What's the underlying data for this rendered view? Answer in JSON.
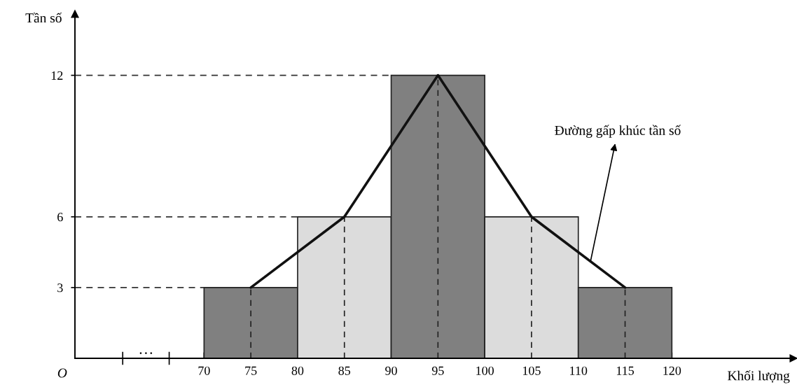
{
  "chart_data": {
    "type": "histogram",
    "xlabel": "Khối lượng",
    "ylabel": "Tần số",
    "bins": [
      70,
      80,
      90,
      100,
      110,
      120
    ],
    "series": [
      {
        "values": [
          3,
          6,
          12,
          6,
          3
        ],
        "colors": [
          "#808080",
          "#dcdcdc",
          "#808080",
          "#dcdcdc",
          "#808080"
        ]
      },
      {
        "type": "line",
        "x": [
          75,
          85,
          95,
          105,
          115
        ],
        "values": [
          3,
          6,
          12,
          6,
          3
        ],
        "color": "#111111"
      }
    ],
    "xlim": [
      56.2,
      133
    ],
    "ref_lines": [
      {
        "axis": "y",
        "value": 3,
        "color": "#333333",
        "line_style": "dashed"
      },
      {
        "axis": "y",
        "value": 6,
        "color": "#333333",
        "line_style": "dashed"
      },
      {
        "axis": "y",
        "value": 12,
        "color": "#333333",
        "line_style": "dashed"
      },
      {
        "axis": "x",
        "value": 75,
        "color": "#222222",
        "line_style": "dashed"
      },
      {
        "axis": "x",
        "value": 85,
        "color": "#222222",
        "line_style": "dashed"
      },
      {
        "axis": "x",
        "value": 95,
        "color": "#222222",
        "line_style": "dashed"
      },
      {
        "axis": "x",
        "value": 105,
        "color": "#222222",
        "line_style": "dashed"
      },
      {
        "axis": "x",
        "value": 115,
        "color": "#222222",
        "line_style": "dashed"
      }
    ],
    "ylim": [
      0,
      14.6
    ],
    "xticks": [
      70,
      75,
      80,
      85,
      90,
      95,
      100,
      105,
      110,
      115,
      120
    ],
    "yticks": [
      3,
      6,
      12
    ],
    "grid": false,
    "annotations": [
      {
        "text": "Đường gấp khúc tần số",
        "x": 111.3,
        "y": 4.1
      },
      "…",
      "O"
    ]
  }
}
